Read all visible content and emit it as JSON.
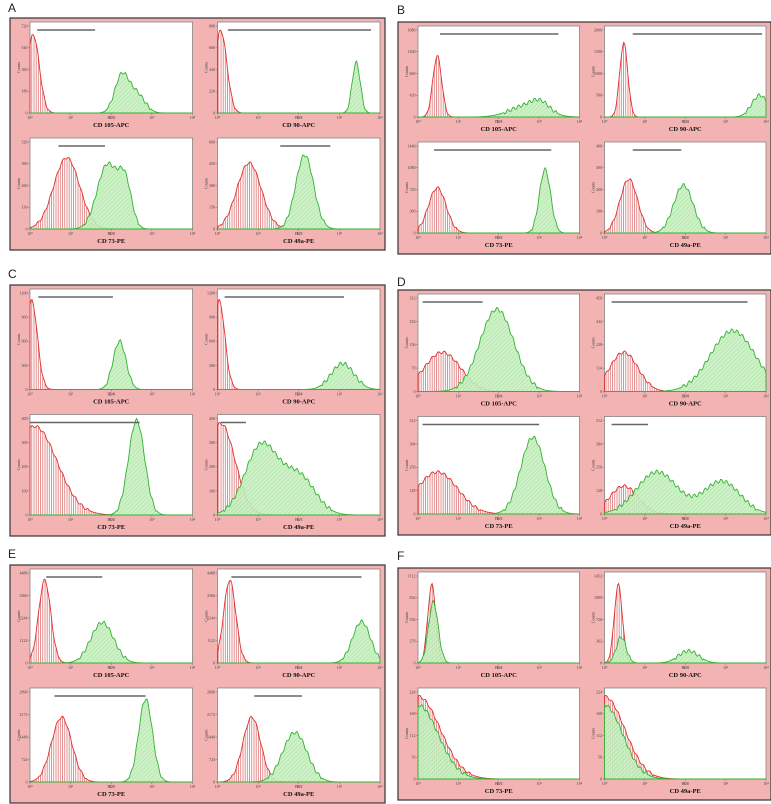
{
  "colors": {
    "panel_bg": "#f4b3b3",
    "plot_bg": "#ffffff",
    "control_line": "#e03030",
    "control_hatch": "#d86060",
    "marker_line": "#33b233",
    "marker_fill": "#c9f0c2",
    "gate": "#666666"
  },
  "chart_data": [
    {
      "label": "A",
      "type": "histogram",
      "xscale": "log",
      "xlim": [
        1,
        10000
      ],
      "subplots": [
        {
          "marker": "CD 105-APC",
          "channel": "FL 4",
          "ylabel": "Counts",
          "yticks": [
            "0",
            "180",
            "360",
            "540",
            "720"
          ],
          "control": {
            "mode": 1.2,
            "sd": 0.15,
            "height": 0.9
          },
          "stained": [
            {
              "mode": 180,
              "sd": 0.17,
              "height": 0.42
            },
            {
              "mode": 420,
              "sd": 0.2,
              "height": 0.22
            }
          ],
          "gate": [
            1.5,
            40
          ]
        },
        {
          "marker": "CD 90-APC",
          "channel": "FL 4",
          "ylabel": "Counts",
          "yticks": [
            "0",
            "220",
            "440",
            "660",
            "880"
          ],
          "control": {
            "mode": 1.2,
            "sd": 0.15,
            "height": 0.95
          },
          "stained": [
            {
              "mode": 2600,
              "sd": 0.1,
              "height": 0.58
            }
          ],
          "gate": [
            1.8,
            6000
          ]
        },
        {
          "marker": "CD 73-PE",
          "channel": "FL 2",
          "ylabel": "Counts",
          "yticks": [
            "0",
            "130",
            "260",
            "390",
            "520"
          ],
          "control": {
            "mode": 8,
            "sd": 0.32,
            "height": 0.82
          },
          "stained": [
            {
              "mode": 80,
              "sd": 0.25,
              "height": 0.74
            },
            {
              "mode": 220,
              "sd": 0.16,
              "height": 0.5
            }
          ],
          "gate": [
            5,
            70
          ]
        },
        {
          "marker": "CD 49a-PE",
          "channel": "FL 2",
          "ylabel": "Counts",
          "yticks": [
            "0",
            "150",
            "300",
            "450",
            "600"
          ],
          "control": {
            "mode": 6,
            "sd": 0.3,
            "height": 0.76
          },
          "stained": [
            {
              "mode": 140,
              "sd": 0.22,
              "height": 0.85
            }
          ],
          "gate": [
            35,
            600
          ]
        }
      ]
    },
    {
      "label": "B",
      "type": "histogram",
      "xscale": "log",
      "xlim": [
        1,
        10000
      ],
      "subplots": [
        {
          "marker": "CD 105-APC",
          "channel": "FL 4",
          "ylabel": "Counts",
          "yticks": [
            "0",
            "420",
            "840",
            "1260",
            "1680"
          ],
          "control": {
            "mode": 3,
            "sd": 0.11,
            "height": 0.7
          },
          "stained": [
            {
              "mode": 500,
              "sd": 0.42,
              "height": 0.13
            },
            {
              "mode": 1100,
              "sd": 0.22,
              "height": 0.1
            }
          ],
          "gate": [
            3.5,
            3000
          ]
        },
        {
          "marker": "CD 90-APC",
          "channel": "FL 4",
          "ylabel": "Counts",
          "yticks": [
            "0",
            "500",
            "1000",
            "1500",
            "2000"
          ],
          "control": {
            "mode": 3,
            "sd": 0.1,
            "height": 0.85
          },
          "stained": [
            {
              "mode": 7000,
              "sd": 0.2,
              "height": 0.25
            }
          ],
          "gate": [
            5,
            8000
          ]
        },
        {
          "marker": "CD 73-PE",
          "channel": "FL 2",
          "ylabel": "Counts",
          "yticks": [
            "0",
            "360",
            "720",
            "1080",
            "1440"
          ],
          "control": {
            "mode": 3,
            "sd": 0.22,
            "height": 0.52
          },
          "stained": [
            {
              "mode": 1400,
              "sd": 0.14,
              "height": 0.73
            }
          ],
          "gate": [
            2.5,
            2000
          ]
        },
        {
          "marker": "CD 49a-PE",
          "channel": "FL 2",
          "ylabel": "Counts",
          "yticks": [
            "0",
            "100",
            "200",
            "300",
            "400"
          ],
          "control": {
            "mode": 4,
            "sd": 0.22,
            "height": 0.62
          },
          "stained": [
            {
              "mode": 90,
              "sd": 0.24,
              "height": 0.55
            }
          ],
          "gate": [
            5,
            80
          ]
        }
      ]
    },
    {
      "label": "C",
      "type": "histogram",
      "xscale": "log",
      "xlim": [
        1,
        10000
      ],
      "subplots": [
        {
          "marker": "CD 105-APC",
          "channel": "FL 4",
          "ylabel": "Counts",
          "yticks": [
            "0",
            "300",
            "600",
            "900",
            "1200"
          ],
          "control": {
            "mode": 1.1,
            "sd": 0.14,
            "height": 0.92
          },
          "stained": [
            {
              "mode": 160,
              "sd": 0.16,
              "height": 0.5
            }
          ],
          "gate": [
            1.6,
            110
          ]
        },
        {
          "marker": "CD 90-APC",
          "channel": "FL 4",
          "ylabel": "Counts",
          "yticks": [
            "0",
            "300",
            "600",
            "900",
            "1200"
          ],
          "control": {
            "mode": 1.1,
            "sd": 0.14,
            "height": 0.92
          },
          "stained": [
            {
              "mode": 1200,
              "sd": 0.28,
              "height": 0.27
            }
          ],
          "gate": [
            1.5,
            1300
          ]
        },
        {
          "marker": "CD 73-PE",
          "channel": "FL 2",
          "ylabel": "Counts",
          "yticks": [
            "0",
            "100",
            "200",
            "300",
            "400"
          ],
          "control": {
            "mode": 1.3,
            "sd": 0.55,
            "height": 0.92
          },
          "stained": [
            {
              "mode": 420,
              "sd": 0.2,
              "height": 0.98
            }
          ],
          "gate": [
            1,
            500
          ]
        },
        {
          "marker": "CD 49a-PE",
          "channel": "FL 2",
          "ylabel": "Counts",
          "yticks": [
            "0",
            "100",
            "200",
            "300",
            "400"
          ],
          "control": {
            "mode": 1.2,
            "sd": 0.35,
            "height": 0.95
          },
          "stained": [
            {
              "mode": 12,
              "sd": 0.4,
              "height": 0.72
            },
            {
              "mode": 100,
              "sd": 0.4,
              "height": 0.4
            }
          ],
          "gate": [
            1.2,
            5
          ]
        }
      ]
    },
    {
      "label": "D",
      "type": "histogram",
      "xscale": "log",
      "xlim": [
        1,
        10000
      ],
      "subplots": [
        {
          "marker": "CD 105-APC",
          "channel": "FL 4",
          "ylabel": "Counts",
          "yticks": [
            "0",
            "78",
            "156",
            "234",
            "312"
          ],
          "control": {
            "mode": 4,
            "sd": 0.45,
            "height": 0.42
          },
          "stained": [
            {
              "mode": 90,
              "sd": 0.42,
              "height": 0.88
            }
          ],
          "gate": [
            1.3,
            40
          ]
        },
        {
          "marker": "CD 90-APC",
          "channel": "FL 4",
          "ylabel": "Counts",
          "yticks": [
            "0",
            "114",
            "228",
            "342",
            "456"
          ],
          "control": {
            "mode": 3,
            "sd": 0.35,
            "height": 0.42
          },
          "stained": [
            {
              "mode": 1500,
              "sd": 0.55,
              "height": 0.65
            }
          ],
          "gate": [
            1.5,
            3500
          ]
        },
        {
          "marker": "CD 73-PE",
          "channel": "FL 2",
          "ylabel": "Counts",
          "yticks": [
            "0",
            "128",
            "256",
            "384",
            "512"
          ],
          "control": {
            "mode": 3,
            "sd": 0.5,
            "height": 0.45
          },
          "stained": [
            {
              "mode": 700,
              "sd": 0.3,
              "height": 0.82
            }
          ],
          "gate": [
            1.3,
            1000
          ]
        },
        {
          "marker": "CD 49a-PE",
          "channel": "FL 2",
          "ylabel": "Counts",
          "yticks": [
            "0",
            "128",
            "256",
            "384",
            "512"
          ],
          "control": {
            "mode": 3,
            "sd": 0.35,
            "height": 0.3
          },
          "stained": [
            {
              "mode": 20,
              "sd": 0.5,
              "height": 0.45
            },
            {
              "mode": 800,
              "sd": 0.45,
              "height": 0.35
            }
          ],
          "gate": [
            1.5,
            12
          ]
        }
      ]
    },
    {
      "label": "E",
      "type": "histogram",
      "xscale": "log",
      "xlim": [
        1,
        10000
      ],
      "subplots": [
        {
          "marker": "CD 105-APC",
          "channel": "FL 4",
          "ylabel": "Counts",
          "yticks": [
            "0",
            "1122",
            "2244",
            "3366",
            "4488"
          ],
          "control": {
            "mode": 2.3,
            "sd": 0.15,
            "height": 0.92
          },
          "stained": [
            {
              "mode": 60,
              "sd": 0.28,
              "height": 0.45
            }
          ],
          "gate": [
            2.5,
            60
          ]
        },
        {
          "marker": "CD 90-APC",
          "channel": "FL 4",
          "ylabel": "Counts",
          "yticks": [
            "0",
            "1122",
            "2244",
            "3366",
            "4488"
          ],
          "control": {
            "mode": 2,
            "sd": 0.15,
            "height": 0.92
          },
          "stained": [
            {
              "mode": 3500,
              "sd": 0.22,
              "height": 0.46
            }
          ],
          "gate": [
            2.2,
            3500
          ]
        },
        {
          "marker": "CD 73-PE",
          "channel": "FL 2",
          "ylabel": "Counts",
          "yticks": [
            "0",
            "724",
            "1448",
            "2172",
            "2896"
          ],
          "control": {
            "mode": 6,
            "sd": 0.25,
            "height": 0.72
          },
          "stained": [
            {
              "mode": 700,
              "sd": 0.17,
              "height": 0.92
            }
          ],
          "gate": [
            4,
            700
          ]
        },
        {
          "marker": "CD 49a-PE",
          "channel": "FL 2",
          "ylabel": "Counts",
          "yticks": [
            "0",
            "724",
            "1448",
            "2172",
            "2896"
          ],
          "control": {
            "mode": 7,
            "sd": 0.22,
            "height": 0.72
          },
          "stained": [
            {
              "mode": 80,
              "sd": 0.3,
              "height": 0.55
            }
          ],
          "gate": [
            8,
            120
          ]
        }
      ]
    },
    {
      "label": "F",
      "type": "histogram",
      "xscale": "log",
      "xlim": [
        1,
        10000
      ],
      "subplots": [
        {
          "marker": "CD 105-APC",
          "channel": "FL 4",
          "ylabel": "Counts",
          "yticks": [
            "0",
            "278",
            "556",
            "834",
            "1112"
          ],
          "control": {
            "mode": 2.2,
            "sd": 0.1,
            "height": 0.9
          },
          "stained": [
            {
              "mode": 2.4,
              "sd": 0.12,
              "height": 0.7
            }
          ],
          "gate": []
        },
        {
          "marker": "CD 90-APC",
          "channel": "FL 4",
          "ylabel": "Counts",
          "yticks": [
            "0",
            "363",
            "726",
            "1089",
            "1452"
          ],
          "control": {
            "mode": 2.2,
            "sd": 0.1,
            "height": 0.9
          },
          "stained": [
            {
              "mode": 2.6,
              "sd": 0.12,
              "height": 0.3
            },
            {
              "mode": 120,
              "sd": 0.25,
              "height": 0.14
            }
          ],
          "gate": []
        },
        {
          "marker": "CD 73-PE",
          "channel": "FL 2",
          "ylabel": "Counts",
          "yticks": [
            "0",
            "56",
            "112",
            "168",
            "224"
          ],
          "control": {
            "mode": 1,
            "sd": 0.55,
            "height": 0.95
          },
          "stained": [
            {
              "mode": 1,
              "sd": 0.5,
              "height": 0.85
            }
          ],
          "gate": []
        },
        {
          "marker": "CD 49a-PE",
          "channel": "FL 2",
          "ylabel": "Counts",
          "yticks": [
            "0",
            "56",
            "112",
            "168",
            "224"
          ],
          "control": {
            "mode": 1,
            "sd": 0.5,
            "height": 0.95
          },
          "stained": [
            {
              "mode": 1,
              "sd": 0.45,
              "height": 0.85
            }
          ],
          "gate": []
        }
      ]
    }
  ]
}
